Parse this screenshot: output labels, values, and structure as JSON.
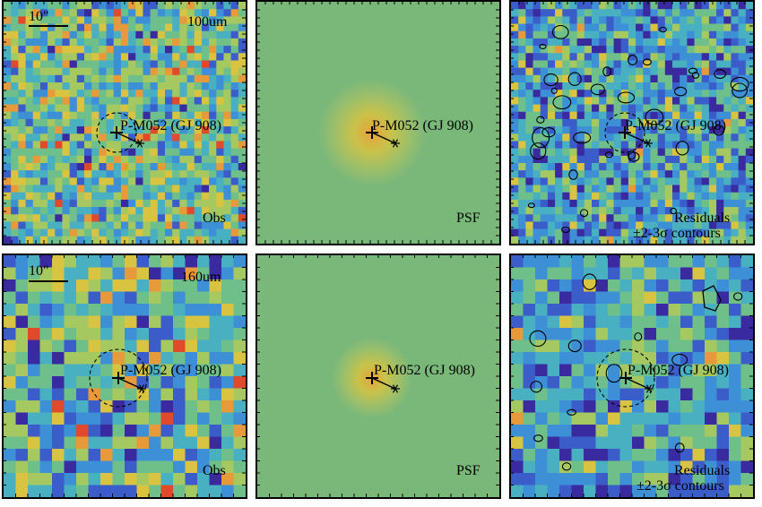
{
  "rows": [
    {
      "band": "100um",
      "scalebar": "10\"",
      "panels": [
        {
          "kind": "obs",
          "label": "Obs",
          "target": "P-M052 (GJ 908)",
          "grid": 33
        },
        {
          "kind": "psf",
          "label": "PSF",
          "target": "P-M052 (GJ 908)"
        },
        {
          "kind": "res",
          "label": "Residuals",
          "label2": "±2-3σ contours",
          "target": "P-M052 (GJ 908)",
          "grid": 33
        }
      ],
      "yticks": [
        "30",
        "20",
        "10"
      ]
    },
    {
      "band": "160um",
      "scalebar": "10\"",
      "panels": [
        {
          "kind": "obs",
          "label": "Obs",
          "target": "P-M052 (GJ 908)",
          "grid": 20
        },
        {
          "kind": "psf",
          "label": "PSF",
          "target": "P-M052 (GJ 908)"
        },
        {
          "kind": "res",
          "label": "Residuals",
          "label2": "±2-3σ contours",
          "target": "P-M052 (GJ 908)",
          "grid": 20
        }
      ],
      "yticks": [
        "20",
        "15",
        "10",
        "5"
      ]
    }
  ],
  "colors": {
    "psf_background": "#7ab87a",
    "psf_core": "#e8a23a",
    "colormap": [
      "#3a2aa0",
      "#3b5dc9",
      "#3d8fd6",
      "#48b0c0",
      "#6fbf8a",
      "#a6c860",
      "#d9c441",
      "#e69a3a",
      "#e04a2a"
    ]
  }
}
